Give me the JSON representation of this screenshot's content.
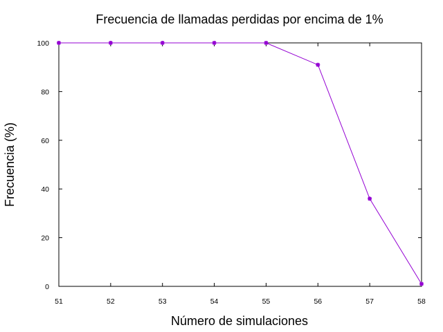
{
  "chart_data": {
    "type": "line",
    "title": "Frecuencia de llamadas perdidas por encima de 1%",
    "xlabel": "Número de simulaciones",
    "ylabel": "Frecuencia (%)",
    "xlim": [
      51,
      58
    ],
    "ylim": [
      0,
      100
    ],
    "xticks": [
      51,
      52,
      53,
      54,
      55,
      56,
      57,
      58
    ],
    "yticks": [
      0,
      20,
      40,
      60,
      80,
      100
    ],
    "grid": false,
    "legend": "none",
    "series": [
      {
        "color": "#9400d3",
        "marker": "star",
        "x": [
          51,
          52,
          53,
          54,
          55,
          56,
          57,
          58
        ],
        "y": [
          100,
          100,
          100,
          100,
          100,
          91,
          36,
          1
        ]
      }
    ]
  }
}
